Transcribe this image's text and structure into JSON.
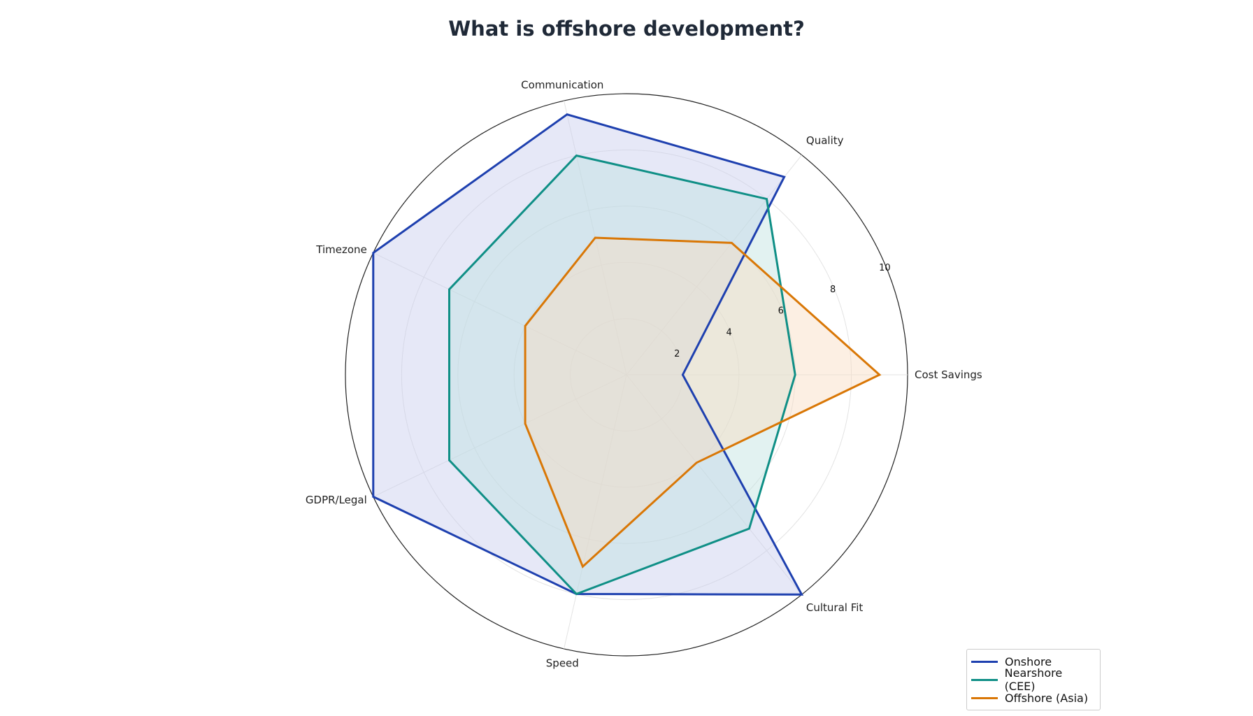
{
  "chart_data": {
    "type": "radar",
    "title": "What is offshore development?",
    "axes": [
      "Cost Savings",
      "Quality",
      "Communication",
      "Timezone",
      "GDPR/Legal",
      "Speed",
      "Cultural Fit"
    ],
    "rlim": [
      0,
      10
    ],
    "rticks": [
      "2",
      "4",
      "6",
      "8",
      "10"
    ],
    "grid": true,
    "legend_position": "bottom-right",
    "series": [
      {
        "name": "Onshore",
        "color": "#1e40af",
        "fill": "#c7cdee",
        "values": [
          2,
          9,
          9.5,
          10,
          10,
          8,
          10
        ]
      },
      {
        "name": "Nearshore (CEE)",
        "color": "#0f8f86",
        "fill": "#bfe3e0",
        "values": [
          6,
          8,
          8,
          7,
          7,
          8,
          7
        ]
      },
      {
        "name": "Offshore (Asia)",
        "color": "#d97706",
        "fill": "#f8dcc0",
        "values": [
          9,
          6,
          5,
          4,
          4,
          7,
          4
        ]
      }
    ]
  }
}
